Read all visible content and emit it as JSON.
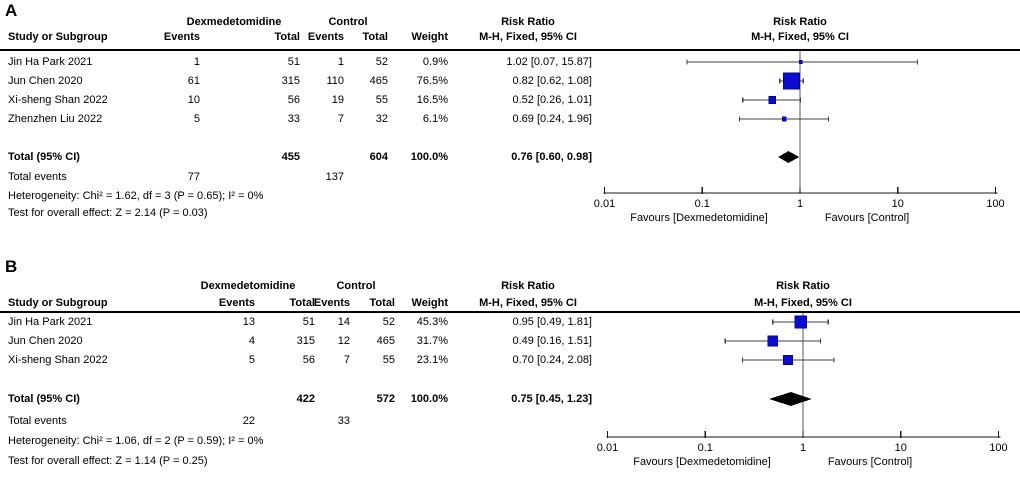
{
  "marker_color": "#0c0cd1",
  "marker_border": "#060684",
  "line_color": "#404040",
  "chart_data": [
    {
      "type": "forest",
      "panel_label": "A",
      "group1": "Dexmedetomidine",
      "group2": "Control",
      "col_study": "Study or Subgroup",
      "col_events": "Events",
      "col_total": "Total",
      "col_weight": "Weight",
      "effect_title": "Risk Ratio",
      "method": "M-H, Fixed, 95% CI",
      "x_scale": "log",
      "x_ticks": [
        0.01,
        0.1,
        1,
        10,
        100
      ],
      "x_tick_labels": [
        "0.01",
        "0.1",
        "1",
        "10",
        "100"
      ],
      "favours_left": "Favours [Dexmedetomidine]",
      "favours_right": "Favours [Control]",
      "studies": [
        {
          "name": "Jin Ha Park 2021",
          "events1": "1",
          "total1": "51",
          "events2": "1",
          "total2": "52",
          "weight": "0.9%",
          "weight_pct": 0.9,
          "rr": 1.02,
          "ci_lo": 0.07,
          "ci_hi": 15.87,
          "rr_text": "1.02 [0.07, 15.87]"
        },
        {
          "name": "Jun Chen 2020",
          "events1": "61",
          "total1": "315",
          "events2": "110",
          "total2": "465",
          "weight": "76.5%",
          "weight_pct": 76.5,
          "rr": 0.82,
          "ci_lo": 0.62,
          "ci_hi": 1.08,
          "rr_text": "0.82 [0.62, 1.08]"
        },
        {
          "name": "Xi-sheng Shan 2022",
          "events1": "10",
          "total1": "56",
          "events2": "19",
          "total2": "55",
          "weight": "16.5%",
          "weight_pct": 16.5,
          "rr": 0.52,
          "ci_lo": 0.26,
          "ci_hi": 1.01,
          "rr_text": "0.52 [0.26, 1.01]"
        },
        {
          "name": "Zhenzhen Liu 2022",
          "events1": "5",
          "total1": "33",
          "events2": "7",
          "total2": "32",
          "weight": "6.1%",
          "weight_pct": 6.1,
          "rr": 0.69,
          "ci_lo": 0.24,
          "ci_hi": 1.96,
          "rr_text": "0.69 [0.24, 1.96]"
        }
      ],
      "total": {
        "label": "Total (95% CI)",
        "total1": "455",
        "total2": "604",
        "weight": "100.0%",
        "rr": 0.76,
        "ci_lo": 0.6,
        "ci_hi": 0.98,
        "rr_text": "0.76 [0.60, 0.98]"
      },
      "total_events": {
        "label": "Total events",
        "events1": "77",
        "events2": "137"
      },
      "heterogeneity": "Heterogeneity: Chi² = 1.62, df = 3 (P = 0.65); I² = 0%",
      "overall_effect": "Test for overall effect: Z = 2.14 (P = 0.03)"
    },
    {
      "type": "forest",
      "panel_label": "B",
      "group1": "Dexmedetomidine",
      "group2": "Control",
      "col_study": "Study or Subgroup",
      "col_events": "Events",
      "col_total": "Total",
      "col_weight": "Weight",
      "effect_title": "Risk Ratio",
      "method": "M-H, Fixed, 95% CI",
      "x_scale": "log",
      "x_ticks": [
        0.01,
        0.1,
        1,
        10,
        100
      ],
      "x_tick_labels": [
        "0.01",
        "0.1",
        "1",
        "10",
        "100"
      ],
      "favours_left": "Favours [Dexmedetomidine]",
      "favours_right": "Favours [Control]",
      "studies": [
        {
          "name": "Jin Ha Park 2021",
          "events1": "13",
          "total1": "51",
          "events2": "14",
          "total2": "52",
          "weight": "45.3%",
          "weight_pct": 45.3,
          "rr": 0.95,
          "ci_lo": 0.49,
          "ci_hi": 1.81,
          "rr_text": "0.95 [0.49, 1.81]"
        },
        {
          "name": "Jun Chen 2020",
          "events1": "4",
          "total1": "315",
          "events2": "12",
          "total2": "465",
          "weight": "31.7%",
          "weight_pct": 31.7,
          "rr": 0.49,
          "ci_lo": 0.16,
          "ci_hi": 1.51,
          "rr_text": "0.49 [0.16, 1.51]"
        },
        {
          "name": "Xi-sheng Shan 2022",
          "events1": "5",
          "total1": "56",
          "events2": "7",
          "total2": "55",
          "weight": "23.1%",
          "weight_pct": 23.1,
          "rr": 0.7,
          "ci_lo": 0.24,
          "ci_hi": 2.08,
          "rr_text": "0.70 [0.24, 2.08]"
        }
      ],
      "total": {
        "label": "Total (95% CI)",
        "total1": "422",
        "total2": "572",
        "weight": "100.0%",
        "rr": 0.75,
        "ci_lo": 0.45,
        "ci_hi": 1.23,
        "rr_text": "0.75 [0.45, 1.23]"
      },
      "total_events": {
        "label": "Total events",
        "events1": "22",
        "events2": "33"
      },
      "heterogeneity": "Heterogeneity: Chi² = 1.06, df = 2 (P = 0.59); I² = 0%",
      "overall_effect": "Test for overall effect: Z = 1.14 (P = 0.25)"
    }
  ]
}
